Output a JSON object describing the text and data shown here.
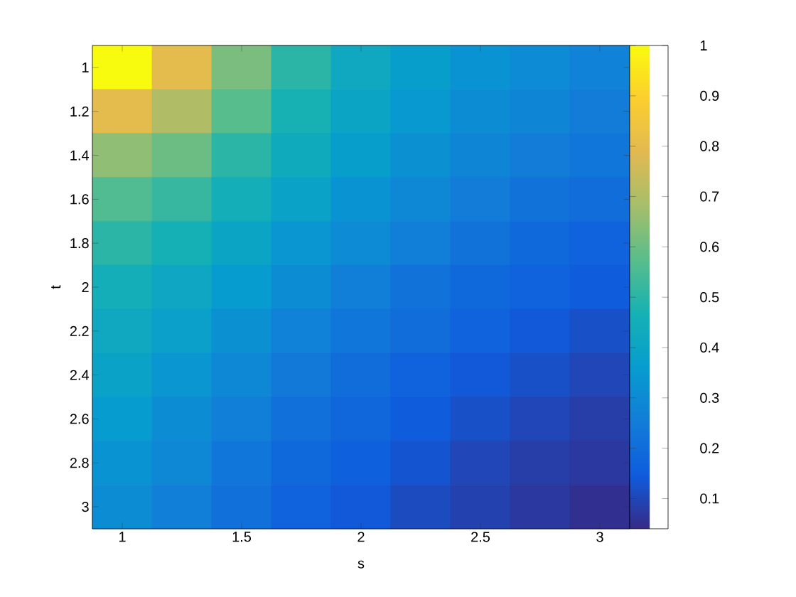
{
  "chart_data": {
    "type": "heatmap",
    "xlabel": "s",
    "ylabel": "t",
    "categories": [
      "1",
      null,
      "1.5",
      null,
      "2",
      null,
      "2.5",
      null,
      "3"
    ],
    "y_categories": [
      "1",
      "1.2",
      "1.4",
      "1.6",
      "1.8",
      "2",
      "2.2",
      "2.4",
      "2.6",
      "2.8",
      "3"
    ],
    "cells": [
      [
        1.0,
        0.8,
        0.62,
        0.5,
        0.42,
        0.37,
        0.33,
        0.3,
        0.27
      ],
      [
        0.8,
        0.7,
        0.57,
        0.47,
        0.4,
        0.35,
        0.31,
        0.28,
        0.25
      ],
      [
        0.65,
        0.6,
        0.5,
        0.43,
        0.37,
        0.32,
        0.28,
        0.25,
        0.23
      ],
      [
        0.56,
        0.52,
        0.45,
        0.39,
        0.33,
        0.29,
        0.25,
        0.22,
        0.2
      ],
      [
        0.5,
        0.46,
        0.4,
        0.34,
        0.3,
        0.26,
        0.22,
        0.19,
        0.17
      ],
      [
        0.45,
        0.41,
        0.36,
        0.31,
        0.26,
        0.22,
        0.19,
        0.17,
        0.15
      ],
      [
        0.42,
        0.38,
        0.32,
        0.27,
        0.23,
        0.2,
        0.17,
        0.14,
        0.12
      ],
      [
        0.39,
        0.34,
        0.29,
        0.24,
        0.2,
        0.17,
        0.14,
        0.12,
        0.1
      ],
      [
        0.36,
        0.31,
        0.26,
        0.21,
        0.18,
        0.15,
        0.12,
        0.1,
        0.08
      ],
      [
        0.33,
        0.29,
        0.23,
        0.19,
        0.16,
        0.13,
        0.1,
        0.08,
        0.07
      ],
      [
        0.31,
        0.26,
        0.21,
        0.17,
        0.14,
        0.11,
        0.09,
        0.07,
        0.05
      ]
    ],
    "clim": [
      0.04,
      1
    ],
    "cticks": [
      0.1,
      0.2,
      0.3,
      0.4,
      0.5,
      0.6,
      0.7,
      0.8,
      0.9,
      1
    ]
  }
}
